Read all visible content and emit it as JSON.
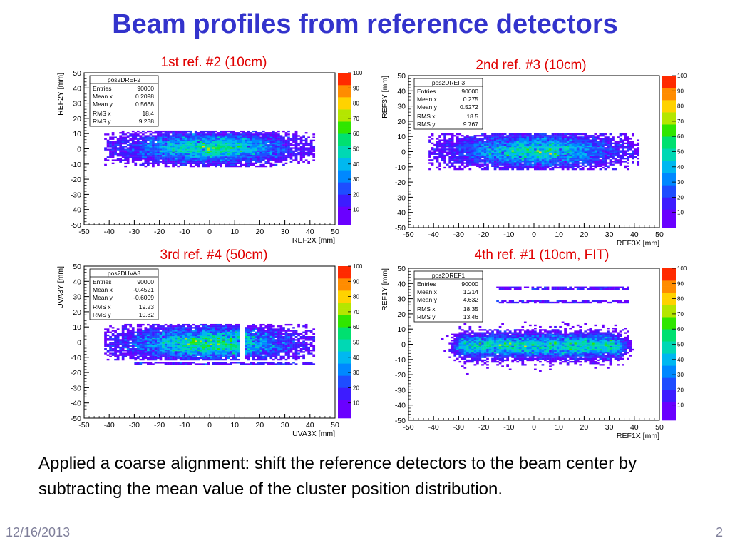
{
  "slide": {
    "title": "Beam profiles from reference detectors",
    "body": "Applied a coarse alignment: shift the reference detectors to the beam center by subtracting the mean value of the cluster position distribution.",
    "date": "12/16/2013",
    "page": "2"
  },
  "colors": {
    "title": "#3333cc",
    "caption": "#e00000",
    "text": "#000000"
  },
  "chart_data": [
    {
      "type": "heatmap",
      "caption": "1st ref. #2 (10cm)",
      "xlabel": "REF2X [mm]",
      "ylabel": "REF2Y [mm]",
      "xlim": [
        -50,
        50
      ],
      "ylim": [
        -50,
        50
      ],
      "xticks": [
        -50,
        -40,
        -30,
        -20,
        -10,
        0,
        10,
        20,
        30,
        40,
        50
      ],
      "yticks": [
        -50,
        -40,
        -30,
        -20,
        -10,
        0,
        10,
        20,
        30,
        40,
        50
      ],
      "colorbar": {
        "range": [
          0,
          100
        ],
        "ticks": [
          10,
          20,
          30,
          40,
          50,
          60,
          70,
          80,
          90,
          100
        ]
      },
      "stats": {
        "name": "pos2DREF2",
        "rows": [
          {
            "label": "Entries",
            "value": "90000"
          },
          {
            "label": "Mean x",
            "value": "0.2098"
          },
          {
            "label": "Mean y",
            "value": "0.5668"
          },
          {
            "label": "RMS x",
            "value": "18.4"
          },
          {
            "label": "RMS y",
            "value": "9.238"
          }
        ]
      },
      "distribution": {
        "mean_x": 0.2098,
        "mean_y": 0.5668,
        "rms_x": 18.4,
        "rms_y": 9.238
      }
    },
    {
      "type": "heatmap",
      "caption": "2nd ref. #3 (10cm)",
      "xlabel": "REF3X [mm]",
      "ylabel": "REF3Y [mm]",
      "xlim": [
        -50,
        50
      ],
      "ylim": [
        -50,
        50
      ],
      "xticks": [
        -50,
        -40,
        -30,
        -20,
        -10,
        0,
        10,
        20,
        30,
        40,
        50
      ],
      "yticks": [
        -50,
        -40,
        -30,
        -20,
        -10,
        0,
        10,
        20,
        30,
        40,
        50
      ],
      "colorbar": {
        "range": [
          0,
          100
        ],
        "ticks": [
          10,
          20,
          30,
          40,
          50,
          60,
          70,
          80,
          90,
          100
        ]
      },
      "stats": {
        "name": "pos2DREF3",
        "rows": [
          {
            "label": "Entries",
            "value": "90000"
          },
          {
            "label": "Mean x",
            "value": "0.275"
          },
          {
            "label": "Mean y",
            "value": "0.5272"
          },
          {
            "label": "RMS x",
            "value": "18.5"
          },
          {
            "label": "RMS y",
            "value": "9.767"
          }
        ]
      },
      "distribution": {
        "mean_x": 0.275,
        "mean_y": 0.5272,
        "rms_x": 18.5,
        "rms_y": 9.767
      }
    },
    {
      "type": "heatmap",
      "caption": "3rd ref. #4 (50cm)",
      "xlabel": "UVA3X [mm]",
      "ylabel": "UVA3Y [mm]",
      "xlim": [
        -50,
        50
      ],
      "ylim": [
        -50,
        50
      ],
      "xticks": [
        -50,
        -40,
        -30,
        -20,
        -10,
        0,
        10,
        20,
        30,
        40,
        50
      ],
      "yticks": [
        -50,
        -40,
        -30,
        -20,
        -10,
        0,
        10,
        20,
        30,
        40,
        50
      ],
      "colorbar": {
        "range": [
          0,
          100
        ],
        "ticks": [
          10,
          20,
          30,
          40,
          50,
          60,
          70,
          80,
          90,
          100
        ]
      },
      "stats": {
        "name": "pos2DUVA3",
        "rows": [
          {
            "label": "Entries",
            "value": "90000"
          },
          {
            "label": "Mean x",
            "value": "-0.4521"
          },
          {
            "label": "Mean y",
            "value": "-0.6009"
          },
          {
            "label": "RMS x",
            "value": "19.23"
          },
          {
            "label": "RMS y",
            "value": "10.32"
          }
        ]
      },
      "distribution": {
        "mean_x": -0.4521,
        "mean_y": -0.6009,
        "rms_x": 19.23,
        "rms_y": 10.32,
        "gap_x": [
          12,
          14
        ],
        "line_y": -14
      }
    },
    {
      "type": "heatmap",
      "caption": "4th ref. #1 (10cm, FIT)",
      "xlabel": "REF1X [mm]",
      "ylabel": "REF1Y [mm]",
      "xlim": [
        -50,
        50
      ],
      "ylim": [
        -50,
        50
      ],
      "xticks": [
        -50,
        -40,
        -30,
        -20,
        -10,
        0,
        10,
        20,
        30,
        40,
        50
      ],
      "yticks": [
        -50,
        -40,
        -30,
        -20,
        -10,
        0,
        10,
        20,
        30,
        40,
        50
      ],
      "colorbar": {
        "range": [
          0,
          100
        ],
        "ticks": [
          10,
          20,
          30,
          40,
          50,
          60,
          70,
          80,
          90,
          100
        ]
      },
      "stats": {
        "name": "pos2DREF1",
        "rows": [
          {
            "label": "Entries",
            "value": "90000"
          },
          {
            "label": "Mean x",
            "value": "1.214"
          },
          {
            "label": "Mean y",
            "value": "4.632"
          },
          {
            "label": "RMS x",
            "value": "18.35"
          },
          {
            "label": "RMS y",
            "value": "13.46"
          }
        ]
      },
      "distribution": {
        "mean_x": 1.214,
        "mean_y": 4.632,
        "rms_x": 18.35,
        "rms_y": 13.46,
        "main_x": [
          -30,
          35
        ],
        "line_y": [
          37,
          28
        ]
      }
    }
  ]
}
